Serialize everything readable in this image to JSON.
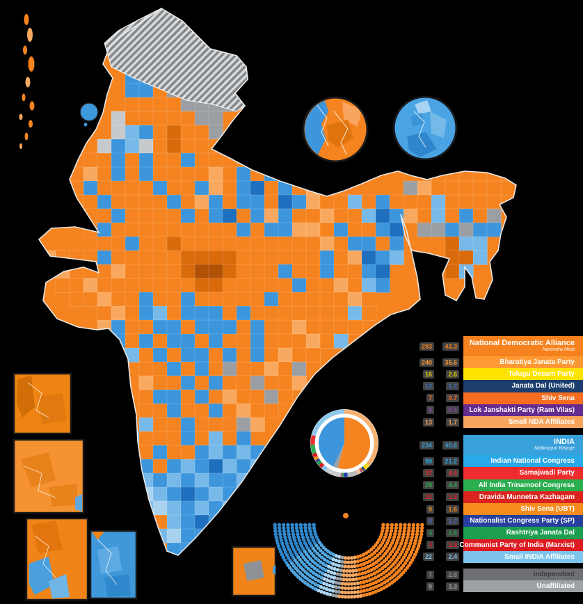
{
  "map": {
    "name": "india-2024-general-election-constituency-map",
    "cell": 20,
    "ox": 40,
    "palette": {
      "O": "#f5831f",
      "o": "#f9a95f",
      "D": "#d96b0b",
      "d": "#b05106",
      "B": "#3d95db",
      "b": "#77b9e8",
      "L": "#a8d2f0",
      "N": "#1e6fbe",
      "G": "#9b9fa3",
      "g": "#c7cacc"
    },
    "rows": [
      ".........GG........................",
      "........GGGG.......................",
      ".......GGGGGG......................",
      ".......GGGGGGGGG...................",
      ".......GGGGGGGGGG..................",
      ".......BBGGGGGGGG..................",
      ".......BBOGGGGGG...................",
      ".......OOOOGGGG....................",
      "......gOOOOOGG.....................",
      "......gbBODOOG.....................",
      ".....gBbgODOOOOO...................",
      "....OOBOBOOBOOOO...................",
      "...OoOBOBOOOOoOBOBO..........OOOOOO",
      "...OBOOOOBOOBoOBNOBOo......GoOOOOOO",
      "...OOBOOOOBOoBOBBONBoOObOBOOObOOOO.",
      "...OOOBOOOOBOBNOBoBOOoOObNBoObOBOG.",
      "....OBOOOOOOOOOBOBBooOBOOBN.GGBGBB.",
      ".....OOBOODOOOOOOOOOOoOBBOB...Dbb..",
      ".oOOOBOOOOODDDDOOOOOOBOoNBb...DDb..",
      ".OoOOOoOOOODddDOOOBOOBOOBN....Db...",
      "..OOoOOOOOOODDOOOOOBOOoObB.........",
      "...OOoOOBOOBOOOOOBOOOOOoO..........",
      ".....OoOBbOBBBOBOOOOOOObO..........",
      ".....oBOOBBOBBBOBOOoOOOO...........",
      "......BOBOBBOBOOBOOOoOb............",
      "......ObOBOBBOBOBOoOO..............",
      "........OOBOBOGOOoOGO..............",
      "........oOOBOBOOGOOo...............",
      "........OBBOBOoOOGO................",
      "........OOBOOBOoOO.................",
      "........bOOBOOOGo..................",
      ".......bOOOBObOB...................",
      "........OBOOBbBbB..................",
      "........BOBbBNbBb..................",
      "........bBbBbBBbB..................",
      "........LbBNBbBB...................",
      "........bLbBbBbB...................",
      ".........ObBNBb....................",
      ".........bLBBB.....................",
      "..........BBb......................"
    ],
    "islands": [
      [
        38,
        28,
        7,
        16
      ],
      [
        43,
        50,
        8,
        20
      ],
      [
        36,
        72,
        6,
        13
      ],
      [
        45,
        92,
        9,
        22
      ],
      [
        40,
        118,
        7,
        15
      ],
      [
        34,
        140,
        5,
        11
      ],
      [
        46,
        152,
        7,
        13
      ],
      [
        30,
        168,
        5,
        9
      ],
      [
        44,
        178,
        6,
        11
      ],
      [
        38,
        196,
        5,
        11
      ],
      [
        30,
        210,
        4,
        8
      ]
    ]
  },
  "legend": {
    "rows": [
      {
        "name": "nda",
        "type": "header",
        "label": "National Democratic Alliance",
        "sub": "Narendra Modi",
        "bg": "#f5821f",
        "text": "#ffffff",
        "seats": "293",
        "pct": "43.3",
        "num_color": "#f5821f"
      },
      {
        "name": "bjp",
        "label": "Bharatiya Janata Party",
        "bg": "#ff9933",
        "text": "#ffffff",
        "seats": "240",
        "pct": "36.6",
        "num_color": "#ff9933"
      },
      {
        "name": "tdp",
        "label": "Telugu Desam Party",
        "bg": "#fce300",
        "text": "#ffffff",
        "seats": "16",
        "pct": "2.6",
        "num_color": "#e8d200"
      },
      {
        "name": "jdu",
        "label": "Janata Dal (United)",
        "bg": "#1b3e6f",
        "text": "#ffffff",
        "seats": "12",
        "pct": "1.2",
        "num_color": "#3d6fb4"
      },
      {
        "name": "shiv-sena",
        "label": "Shiv Sena",
        "bg": "#f66d1f",
        "text": "#ffffff",
        "seats": "7",
        "pct": "0.7",
        "num_color": "#f66d1f"
      },
      {
        "name": "ljp-rv",
        "label": "Lok Janshakti Party (Ram Vilas)",
        "bg": "#652c90",
        "text": "#ffffff",
        "seats": "5",
        "pct": "0.5",
        "num_color": "#8e44ad"
      },
      {
        "name": "small-nda",
        "label": "Small NDA Affiliates",
        "bg": "#f9a45c",
        "text": "#ffffff",
        "seats": "13",
        "pct": "1.7",
        "num_color": "#f9a45c"
      },
      {
        "type": "spacer"
      },
      {
        "name": "india",
        "type": "header",
        "label": "INDIA",
        "sub": "Mallikarjun Kharge",
        "bg": "#38a1dc",
        "text": "#ffffff",
        "seats": "234",
        "pct": "40.6",
        "num_color": "#38a1dc"
      },
      {
        "name": "inc",
        "label": "Indian National Congress",
        "bg": "#2aa9e8",
        "text": "#ffffff",
        "seats": "99",
        "pct": "21.2",
        "num_color": "#2aa9e8"
      },
      {
        "name": "sp",
        "label": "Samajwadi Party",
        "bg": "#ee2c2c",
        "text": "#ffffff",
        "seats": "37",
        "pct": "4.6",
        "num_color": "#ee2c2c"
      },
      {
        "name": "aitc",
        "label": "All India Trinamool Congress",
        "bg": "#2bae4f",
        "text": "#ffffff",
        "seats": "29",
        "pct": "4.4",
        "num_color": "#2bae4f"
      },
      {
        "name": "dmk",
        "label": "Dravida Munnetra Kazhagam",
        "bg": "#dc241f",
        "text": "#ffffff",
        "seats": "22",
        "pct": "1.8",
        "num_color": "#dc241f"
      },
      {
        "name": "ss-ubt",
        "label": "Shiv Sena (UBT)",
        "bg": "#f78c1e",
        "text": "#ffffff",
        "seats": "9",
        "pct": "1.6",
        "num_color": "#f78c1e"
      },
      {
        "name": "ncp-sp",
        "label": "Nationalist Congress Party (SP)",
        "bg": "#27409f",
        "text": "#ffffff",
        "seats": "8",
        "pct": "1.2",
        "num_color": "#4a64c0"
      },
      {
        "name": "rjd",
        "label": "Rashtriya Janata Dal",
        "bg": "#1d9e50",
        "text": "#ffffff",
        "seats": "4",
        "pct": "1.6",
        "num_color": "#1d9e50"
      },
      {
        "name": "cpim",
        "label": "Communist Party of India (Marxist)",
        "bg": "#de1b22",
        "text": "#ffffff",
        "seats": "4",
        "pct": "1.8",
        "num_color": "#de1b22"
      },
      {
        "name": "small-india",
        "label": "Small INDIA Affiliates",
        "bg": "#7ec5ec",
        "text": "#ffffff",
        "seats": "22",
        "pct": "2.4",
        "num_color": "#7ec5ec"
      },
      {
        "type": "spacer2"
      },
      {
        "name": "independent",
        "label": "Independent",
        "bg": "#6f7073",
        "text": "#3b3b3d",
        "seats": "7",
        "pct": "2.8",
        "num_color": "#8a8c8f"
      },
      {
        "name": "unaffiliated",
        "label": "Unaffiliated",
        "bg": "#9fa2a5",
        "text": "#ffffff",
        "seats": "9",
        "pct": "3.3",
        "num_color": "#9fa2a5"
      }
    ]
  },
  "hemicycle": {
    "total_seats": 543,
    "blocks": [
      {
        "name": "inc",
        "color": "#2f87cc",
        "n": 99
      },
      {
        "name": "india-others",
        "color": "#4fa5e0",
        "n": 98
      },
      {
        "name": "india-small",
        "color": "#a9d4f2",
        "n": 37
      },
      {
        "name": "unaffiliated",
        "color": "#9aa0a4",
        "n": 16
      },
      {
        "name": "nda-allies",
        "color": "#f4a660",
        "n": 53
      },
      {
        "name": "bjp",
        "color": "#f5831f",
        "n": 240
      }
    ]
  },
  "donut": {
    "pie_seats": [
      {
        "name": "nda",
        "color": "#f5831f",
        "pct": 54.0
      },
      {
        "name": "others",
        "color": "#9aa0a4",
        "pct": 2.9
      },
      {
        "name": "india",
        "color": "#3d95db",
        "pct": 43.1
      }
    ],
    "ring_vote": [
      {
        "name": "bjp",
        "color": "#f7b273",
        "pct": 36.6
      },
      {
        "name": "tdp",
        "color": "#f7d917",
        "pct": 2.6
      },
      {
        "name": "jdu",
        "color": "#1b4a7a",
        "pct": 1.2
      },
      {
        "name": "shiv-sena",
        "color": "#f37425",
        "pct": 0.7
      },
      {
        "name": "ljp-rv",
        "color": "#7b2e8e",
        "pct": 0.5
      },
      {
        "name": "small-nda",
        "color": "#f8c18e",
        "pct": 1.7
      },
      {
        "name": "others-a",
        "color": "#b9bcbf",
        "pct": 5.0
      },
      {
        "name": "others-b",
        "color": "#1b3faa",
        "pct": 2.0
      },
      {
        "name": "others-c",
        "color": "#3aa54b",
        "pct": 1.0
      },
      {
        "name": "others-d",
        "color": "#e84393",
        "pct": 0.5
      },
      {
        "name": "others-e",
        "color": "#c9cccf",
        "pct": 7.6
      },
      {
        "name": "small-india",
        "color": "#87c5ea",
        "pct": 2.4
      },
      {
        "name": "cpim",
        "color": "#e01a22",
        "pct": 1.8
      },
      {
        "name": "rjd",
        "color": "#1e9e4c",
        "pct": 1.6
      },
      {
        "name": "ncp-sp",
        "color": "#2b3f9e",
        "pct": 1.2
      },
      {
        "name": "ss-ubt",
        "color": "#f08a1d",
        "pct": 1.6
      },
      {
        "name": "dmk",
        "color": "#d7191c",
        "pct": 1.8
      },
      {
        "name": "aitc",
        "color": "#2fae54",
        "pct": 4.4
      },
      {
        "name": "sp",
        "color": "#ef2e2e",
        "pct": 4.6
      },
      {
        "name": "inc",
        "color": "#8ec9ed",
        "pct": 21.2
      }
    ]
  },
  "colors": {
    "nda_accent": "#f5831f",
    "india_accent": "#3d95db",
    "disputed_hatch": "#84888b",
    "unaffiliated_gray": "#9b9fa3"
  }
}
